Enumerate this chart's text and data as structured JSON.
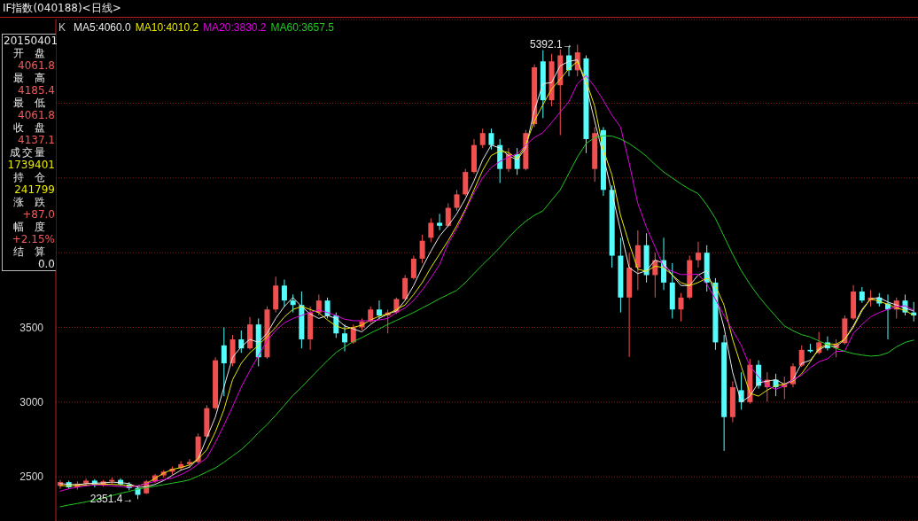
{
  "chart_data": {
    "type": "candlestick",
    "title": "IF指数(040188)<日线>",
    "categories": [
      null,
      null,
      null,
      null,
      null,
      null,
      null,
      null,
      null,
      null,
      null,
      null,
      null,
      null,
      null,
      null,
      null,
      null,
      null,
      null,
      null,
      null,
      null,
      null,
      null,
      null,
      null,
      null,
      null,
      null,
      null,
      null,
      null,
      null,
      null,
      null,
      null,
      null,
      null,
      null,
      null,
      null,
      null,
      null,
      null,
      null,
      null,
      null,
      null,
      null,
      null,
      null,
      null,
      null,
      null,
      null,
      null,
      null,
      null,
      null,
      null,
      null,
      null,
      null,
      null,
      null,
      null,
      null,
      null,
      null,
      null,
      null,
      null,
      null,
      null,
      null,
      null,
      null,
      null,
      null,
      null,
      null,
      null,
      null,
      null,
      null,
      null,
      null,
      null,
      null,
      null,
      null,
      null,
      null,
      null,
      null,
      null,
      null,
      null,
      null
    ],
    "ohlc": [
      [
        2440,
        2480,
        2420,
        2465
      ],
      [
        2465,
        2475,
        2420,
        2430
      ],
      [
        2430,
        2470,
        2415,
        2455
      ],
      [
        2455,
        2490,
        2440,
        2475
      ],
      [
        2475,
        2485,
        2430,
        2445
      ],
      [
        2445,
        2480,
        2435,
        2470
      ],
      [
        2470,
        2495,
        2450,
        2480
      ],
      [
        2480,
        2490,
        2440,
        2450
      ],
      [
        2450,
        2465,
        2410,
        2425
      ],
      [
        2425,
        2440,
        2351.4,
        2380
      ],
      [
        2390,
        2480,
        2385,
        2470
      ],
      [
        2470,
        2520,
        2460,
        2510
      ],
      [
        2510,
        2545,
        2495,
        2535
      ],
      [
        2535,
        2570,
        2515,
        2555
      ],
      [
        2560,
        2605,
        2545,
        2585
      ],
      [
        2585,
        2620,
        2560,
        2600
      ],
      [
        2600,
        2790,
        2590,
        2770
      ],
      [
        2770,
        2980,
        2760,
        2960
      ],
      [
        2960,
        3300,
        2950,
        3280
      ],
      [
        3380,
        3500,
        3040,
        3260
      ],
      [
        3260,
        3450,
        3240,
        3420
      ],
      [
        3420,
        3480,
        3330,
        3360
      ],
      [
        3360,
        3570,
        3350,
        3520
      ],
      [
        3520,
        3560,
        3240,
        3300
      ],
      [
        3300,
        3640,
        3290,
        3620
      ],
      [
        3620,
        3840,
        3600,
        3780
      ],
      [
        3780,
        3820,
        3640,
        3680
      ],
      [
        3680,
        3720,
        3600,
        3650
      ],
      [
        3650,
        3740,
        3360,
        3420
      ],
      [
        3420,
        3640,
        3350,
        3600
      ],
      [
        3600,
        3720,
        3580,
        3680
      ],
      [
        3680,
        3700,
        3560,
        3580
      ],
      [
        3580,
        3600,
        3430,
        3460
      ],
      [
        3460,
        3520,
        3340,
        3400
      ],
      [
        3400,
        3520,
        3390,
        3500
      ],
      [
        3500,
        3560,
        3480,
        3540
      ],
      [
        3540,
        3640,
        3530,
        3620
      ],
      [
        3620,
        3680,
        3560,
        3580
      ],
      [
        3580,
        3620,
        3460,
        3600
      ],
      [
        3600,
        3700,
        3590,
        3690
      ],
      [
        3690,
        3850,
        3680,
        3830
      ],
      [
        3830,
        3980,
        3820,
        3960
      ],
      [
        3960,
        4120,
        3930,
        4080
      ],
      [
        4100,
        4230,
        4070,
        4200
      ],
      [
        4200,
        4260,
        4150,
        4180
      ],
      [
        4180,
        4330,
        4170,
        4300
      ],
      [
        4300,
        4420,
        4280,
        4390
      ],
      [
        4390,
        4560,
        4380,
        4540
      ],
      [
        4540,
        4760,
        4530,
        4720
      ],
      [
        4720,
        4830,
        4700,
        4800
      ],
      [
        4800,
        4830,
        4690,
        4720
      ],
      [
        4720,
        4760,
        4466,
        4560
      ],
      [
        4560,
        4700,
        4540,
        4660
      ],
      [
        4660,
        4700,
        4520,
        4560
      ],
      [
        4560,
        4820,
        4550,
        4800
      ],
      [
        4860,
        5260,
        4840,
        5240
      ],
      [
        5280,
        5355,
        4900,
        5020
      ],
      [
        5020,
        5330,
        4980,
        5280
      ],
      [
        5120,
        5360,
        4786,
        5320
      ],
      [
        5320,
        5380,
        5180,
        5220
      ],
      [
        5220,
        5392.1,
        5180,
        5340
      ],
      [
        5300,
        5320,
        4666,
        4760
      ],
      [
        4560,
        4840,
        4474,
        4800
      ],
      [
        4820,
        4840,
        4380,
        4420
      ],
      [
        4420,
        4450,
        3900,
        3980
      ],
      [
        3980,
        4100,
        3600,
        3700
      ],
      [
        3700,
        4000,
        3302,
        3900
      ],
      [
        3900,
        4150,
        3750,
        4050
      ],
      [
        4050,
        4130,
        3800,
        3850
      ],
      [
        3850,
        4000,
        3700,
        3950
      ],
      [
        3950,
        4100,
        3750,
        3800
      ],
      [
        3800,
        3930,
        3560,
        3620
      ],
      [
        3620,
        3730,
        3540,
        3700
      ],
      [
        3700,
        3980,
        3690,
        3950
      ],
      [
        3950,
        4073,
        3900,
        4000
      ],
      [
        4000,
        4050,
        3740,
        3800
      ],
      [
        3800,
        3830,
        3350,
        3400
      ],
      [
        3400,
        3450,
        2674,
        2900
      ],
      [
        2900,
        3140,
        2865,
        3100
      ],
      [
        3080,
        3200,
        2950,
        3000
      ],
      [
        3000,
        3290,
        2990,
        3250
      ],
      [
        3250,
        3280,
        3090,
        3110
      ],
      [
        3100,
        3200,
        3003,
        3150
      ],
      [
        3150,
        3190,
        3040,
        3100
      ],
      [
        3100,
        3170,
        3020,
        3120
      ],
      [
        3120,
        3260,
        3100,
        3240
      ],
      [
        3245,
        3380,
        3235,
        3350
      ],
      [
        3350,
        3390,
        3330,
        3340
      ],
      [
        3330,
        3470,
        3320,
        3400
      ],
      [
        3400,
        3440,
        3345,
        3360
      ],
      [
        3360,
        3420,
        3300,
        3390
      ],
      [
        3395,
        3580,
        3385,
        3560
      ],
      [
        3560,
        3783,
        3550,
        3740
      ],
      [
        3740,
        3770,
        3665,
        3680
      ],
      [
        3680,
        3750,
        3640,
        3700
      ],
      [
        3700,
        3730,
        3640,
        3660
      ],
      [
        3660,
        3720,
        3420,
        3620
      ],
      [
        3620,
        3700,
        3560,
        3680
      ],
      [
        3680,
        3720,
        3580,
        3600
      ],
      [
        3600,
        3670,
        3540,
        3580
      ]
    ],
    "colors": [
      "#f05050",
      "#54fcfc",
      "#f05050",
      "#f05050",
      "#54fcfc",
      "#f05050",
      "#f05050",
      "#54fcfc",
      "#54fcfc",
      "#54fcfc",
      "#f05050",
      "#f05050",
      "#f05050",
      "#f05050",
      "#f05050",
      "#f05050",
      "#f05050",
      "#f05050",
      "#f05050",
      "#54fcfc",
      "#f05050",
      "#54fcfc",
      "#f05050",
      "#54fcfc",
      "#f05050",
      "#f05050",
      "#54fcfc",
      "#54fcfc",
      "#54fcfc",
      "#f05050",
      "#f05050",
      "#54fcfc",
      "#54fcfc",
      "#54fcfc",
      "#f05050",
      "#f05050",
      "#f05050",
      "#54fcfc",
      "#f05050",
      "#f05050",
      "#f05050",
      "#f05050",
      "#f05050",
      "#f05050",
      "#54fcfc",
      "#f05050",
      "#f05050",
      "#f05050",
      "#f05050",
      "#f05050",
      "#54fcfc",
      "#54fcfc",
      "#f05050",
      "#54fcfc",
      "#f05050",
      "#f05050",
      "#54fcfc",
      "#f05050",
      "#f05050",
      "#54fcfc",
      "#f05050",
      "#54fcfc",
      "#f05050",
      "#54fcfc",
      "#54fcfc",
      "#54fcfc",
      "#f05050",
      "#f05050",
      "#54fcfc",
      "#f05050",
      "#54fcfc",
      "#54fcfc",
      "#f05050",
      "#f05050",
      "#f05050",
      "#54fcfc",
      "#54fcfc",
      "#54fcfc",
      "#f05050",
      "#54fcfc",
      "#f05050",
      "#54fcfc",
      "#f05050",
      "#54fcfc",
      "#f05050",
      "#f05050",
      "#f05050",
      "#54fcfc",
      "#f05050",
      "#54fcfc",
      "#f05050",
      "#f05050",
      "#f05050",
      "#54fcfc",
      "#f05050",
      "#54fcfc",
      "#54fcfc",
      "#f05050",
      "#54fcfc",
      "#54fcfc"
    ],
    "series": [
      {
        "name": "MA5:4060.0",
        "type": "line",
        "color": "#e8e8e8",
        "values": [
          2455,
          2450,
          2448,
          2455,
          2458,
          2460,
          2465,
          2462,
          2455,
          2430,
          2435,
          2450,
          2475,
          2510,
          2545,
          2565,
          2620,
          2760,
          2900,
          3100,
          3300,
          3370,
          3420,
          3400,
          3460,
          3560,
          3640,
          3700,
          3640,
          3590,
          3560,
          3580,
          3560,
          3510,
          3490,
          3470,
          3520,
          3560,
          3590,
          3610,
          3680,
          3780,
          3900,
          4010,
          4110,
          4180,
          4260,
          4360,
          4480,
          4620,
          4720,
          4700,
          4650,
          4620,
          4700,
          4950,
          5130,
          5138,
          5250,
          5280,
          5290,
          5120,
          4880,
          4650,
          4400,
          4150,
          3900,
          3860,
          3880,
          3950,
          3930,
          3850,
          3780,
          3780,
          3850,
          3880,
          3720,
          3500,
          3200,
          3000,
          3040,
          3130,
          3140,
          3150,
          3120,
          3150,
          3260,
          3280,
          3350,
          3380,
          3370,
          3420,
          3510,
          3620,
          3690,
          3700,
          3670,
          3650,
          3630,
          3610
        ]
      },
      {
        "name": "MA10:4010.2",
        "type": "line",
        "color": "#e8e800",
        "values": [
          2442,
          2440,
          2442,
          2445,
          2450,
          2452,
          2450,
          2448,
          2440,
          2440,
          2455,
          2490,
          2525,
          2550,
          2562,
          2580,
          2620,
          2680,
          2800,
          2950,
          3150,
          3260,
          3330,
          3380,
          3440,
          3500,
          3570,
          3620,
          3640,
          3620,
          3599,
          3550,
          3510,
          3490,
          3500,
          3515,
          3550,
          3575,
          3590,
          3620,
          3650,
          3720,
          3800,
          3900,
          3990,
          4080,
          4180,
          4290,
          4420,
          4550,
          4650,
          4680,
          4670,
          4630,
          4720,
          4880,
          4990,
          5095,
          5160,
          5230,
          5280,
          5150,
          4980,
          4690,
          4520,
          4250,
          4060,
          3890,
          3875,
          3910,
          3900,
          3850,
          3800,
          3780,
          3800,
          3830,
          3780,
          3650,
          3420,
          3240,
          3060,
          3040,
          3080,
          3110,
          3120,
          3140,
          3190,
          3270,
          3360,
          3390,
          3388,
          3420,
          3500,
          3610,
          3693,
          3675,
          3655,
          3630,
          3615,
          3580
        ]
      },
      {
        "name": "MA20:3830.2",
        "type": "line",
        "color": "#e000e0",
        "values": [
          2405,
          2420,
          2432,
          2440,
          2447,
          2445,
          2440,
          2436,
          2432,
          2440,
          2455,
          2470,
          2482,
          2492,
          2515,
          2545,
          2585,
          2626,
          2730,
          2846,
          2970,
          3100,
          3210,
          3310,
          3410,
          3480,
          3530,
          3560,
          3580,
          3600,
          3616,
          3600,
          3580,
          3555,
          3545,
          3545,
          3545,
          3550,
          3560,
          3600,
          3630,
          3680,
          3750,
          3830,
          3920,
          4060,
          4160,
          4280,
          4400,
          4500,
          4570,
          4610,
          4640,
          4660,
          4720,
          4770,
          4803,
          4870,
          4940,
          5010,
          5130,
          5185,
          5110,
          5020,
          4920,
          4840,
          4600,
          4330,
          4170,
          4040,
          3905,
          3875,
          3854,
          3854,
          3856,
          3790,
          3690,
          3580,
          3480,
          3380,
          3240,
          3170,
          3110,
          3085,
          3110,
          3150,
          3180,
          3230,
          3270,
          3290,
          3340,
          3340,
          3460,
          3520,
          3570,
          3600,
          3620,
          3640,
          3645,
          3615
        ]
      },
      {
        "name": "MA60:3657.5",
        "type": "line",
        "color": "#22c822",
        "values": [
          2300,
          2312,
          2322,
          2333,
          2345,
          2360,
          2375,
          2390,
          2403,
          2418,
          2428,
          2438,
          2448,
          2458,
          2468,
          2480,
          2505,
          2533,
          2560,
          2598,
          2640,
          2682,
          2735,
          2795,
          2850,
          2912,
          2978,
          3045,
          3100,
          3160,
          3220,
          3278,
          3332,
          3370,
          3405,
          3432,
          3462,
          3490,
          3520,
          3547,
          3573,
          3600,
          3630,
          3660,
          3692,
          3720,
          3748,
          3800,
          3860,
          3920,
          3975,
          4035,
          4100,
          4160,
          4210,
          4250,
          4280,
          4350,
          4420,
          4530,
          4640,
          4730,
          4770,
          4782,
          4780,
          4760,
          4730,
          4690,
          4645,
          4590,
          4540,
          4500,
          4460,
          4425,
          4395,
          4320,
          4230,
          4110,
          3990,
          3880,
          3790,
          3710,
          3640,
          3575,
          3510,
          3478,
          3452,
          3436,
          3410,
          3385,
          3360,
          3340,
          3325,
          3315,
          3308,
          3312,
          3330,
          3370,
          3400,
          3415
        ]
      }
    ],
    "legend_title": "K",
    "legend": "top left",
    "ylim": [
      2205,
      5560
    ],
    "yticks": [
      2500,
      3000,
      3500,
      {
        "value": 4000,
        "label": null
      },
      {
        "value": 4500,
        "label": null
      },
      {
        "value": 5000,
        "label": null
      }
    ],
    "grid": "y",
    "tick_labels": "y",
    "annotations": [
      "20150401",
      "开盘",
      "4061.8",
      "最高",
      "4185.4",
      "最低",
      "4061.8",
      "收盘",
      "4137.1",
      "成交量",
      "1739401",
      "持仓",
      "241799",
      "涨跌",
      "+87.0",
      "幅度",
      "+2.15%",
      "结算",
      "0.0",
      "5392.1→",
      {
        "text": "2351.4→",
        "y": 2351.4
      }
    ]
  }
}
